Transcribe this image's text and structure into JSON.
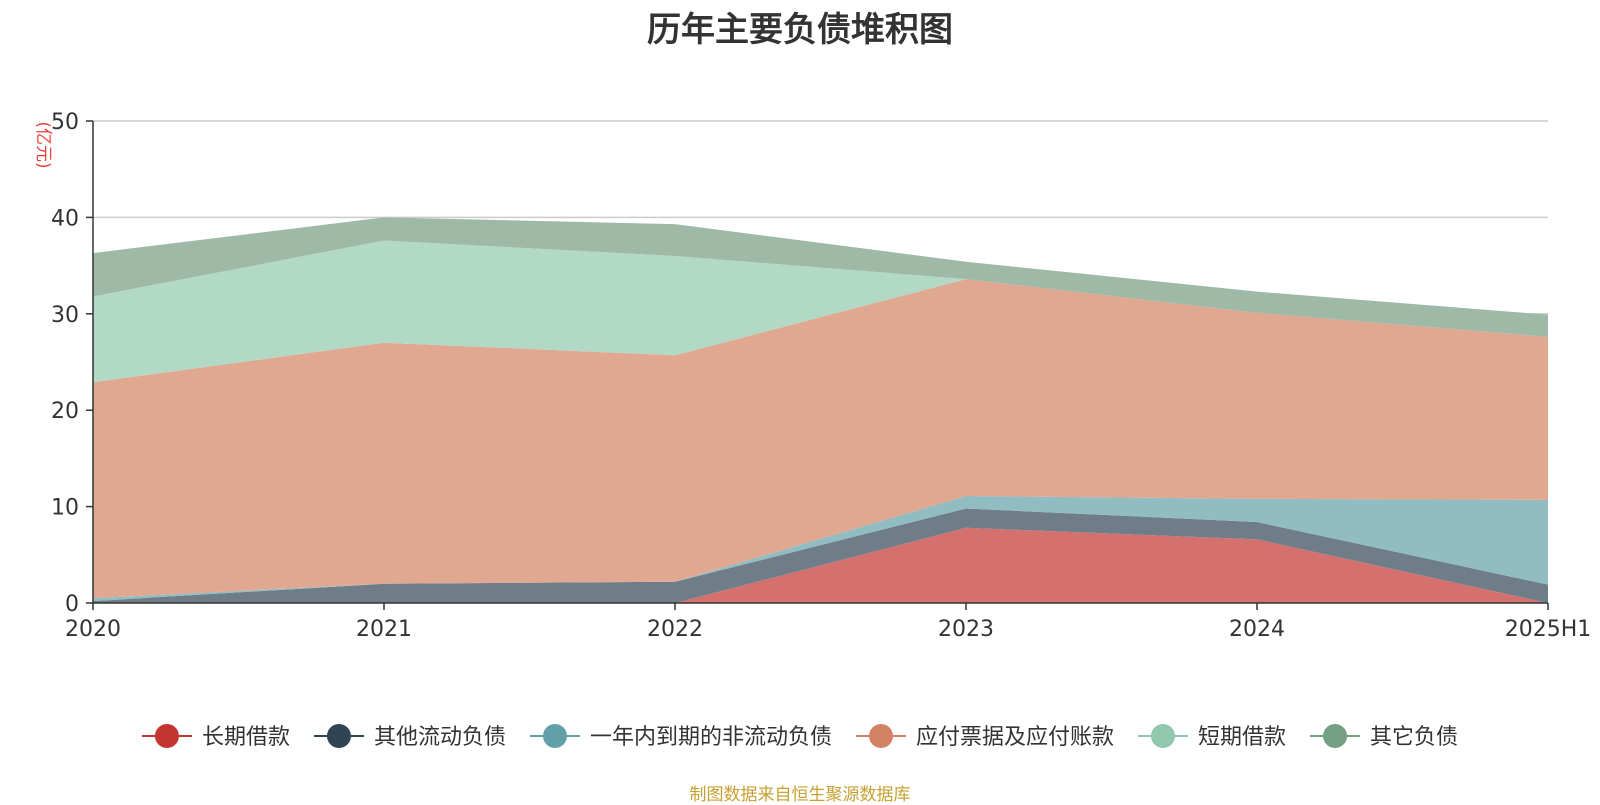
{
  "chart_data": {
    "type": "area",
    "stacked": true,
    "title": "历年主要负债堆积图",
    "unit_label": "(亿元)",
    "x": [
      "2020",
      "2021",
      "2022",
      "2023",
      "2024",
      "2025H1"
    ],
    "ylim": [
      0,
      50
    ],
    "yticks": [
      0,
      10,
      20,
      30,
      40,
      50
    ],
    "grid": true,
    "legend_position": "bottom",
    "series": [
      {
        "name": "长期借款",
        "color": "#c23531",
        "fill": "#d4716e",
        "values": [
          0,
          0,
          0,
          7.8,
          6.6,
          0
        ]
      },
      {
        "name": "其他流动负债",
        "color": "#2f4554",
        "fill": "#6f7d89",
        "values": [
          0.2,
          2.0,
          2.2,
          2.0,
          1.8,
          1.9
        ]
      },
      {
        "name": "一年内到期的非流动负债",
        "color": "#61a0a8",
        "fill": "#90bcc2",
        "values": [
          0.3,
          0,
          0,
          1.3,
          2.4,
          8.8
        ]
      },
      {
        "name": "应付票据及应付账款",
        "color": "#d48265",
        "fill": "#e0a891",
        "values": [
          22.4,
          25.0,
          23.5,
          22.5,
          19.3,
          16.9
        ]
      },
      {
        "name": "短期借款",
        "color": "#91c7ae",
        "fill": "#b2d8c6",
        "values": [
          8.9,
          10.6,
          10.3,
          0,
          0,
          0
        ]
      },
      {
        "name": "其它负债",
        "color": "#749f83",
        "fill": "#9fb9a7",
        "values": [
          4.5,
          2.4,
          3.3,
          1.8,
          2.2,
          2.3
        ]
      }
    ]
  },
  "source_note": "制图数据来自恒生聚源数据库"
}
